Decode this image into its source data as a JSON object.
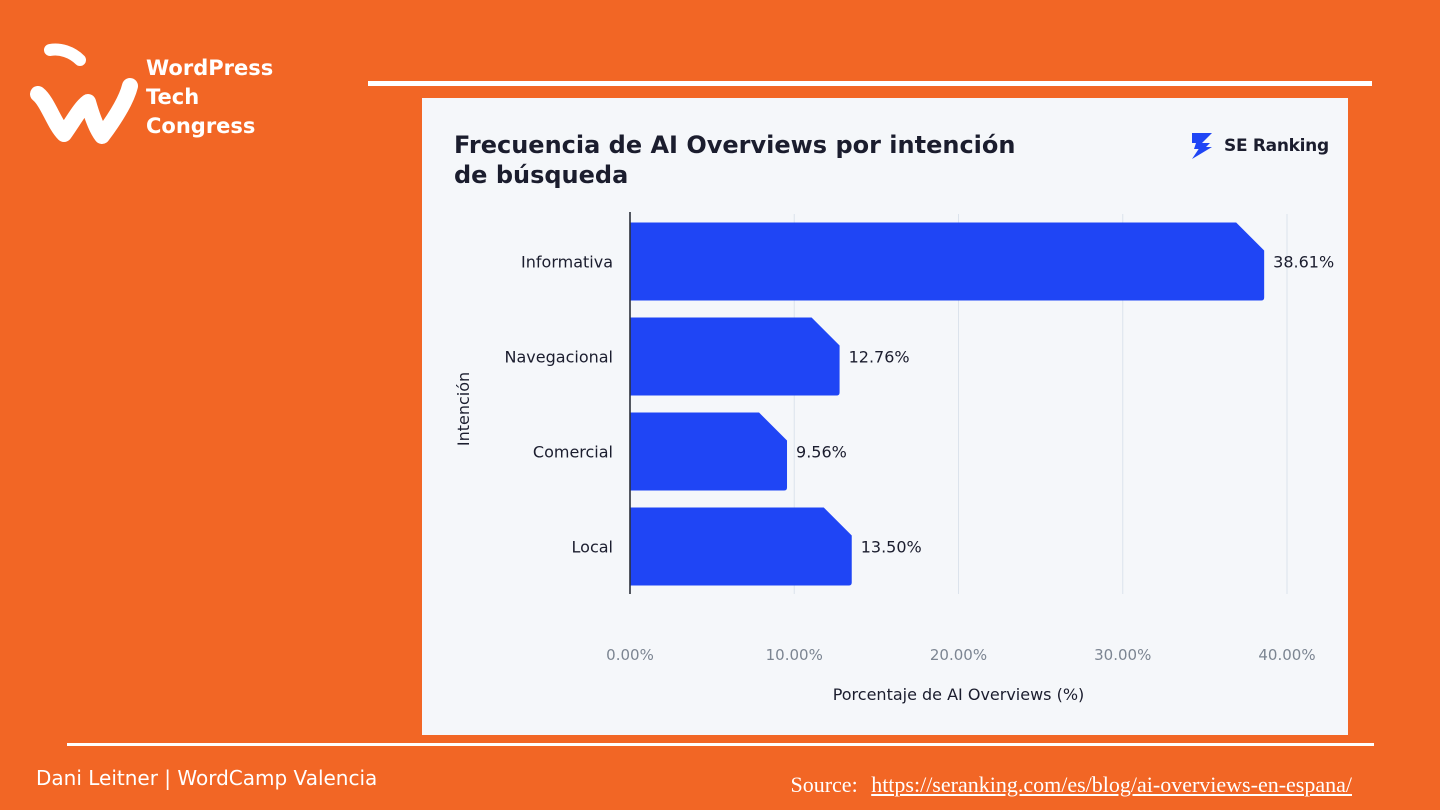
{
  "brand": {
    "line1": "WordPress",
    "line2": "Tech",
    "line3": "Congress"
  },
  "chart_brand": "SE Ranking",
  "chart_data": {
    "type": "bar",
    "orientation": "horizontal",
    "title": "Frecuencia de AI Overviews por intención de búsqueda",
    "title_lines": [
      "Frecuencia de AI Overviews por intención",
      "de búsqueda"
    ],
    "categories": [
      "Informativa",
      "Navegacional",
      "Comercial",
      "Local"
    ],
    "values": [
      38.61,
      12.76,
      9.56,
      13.5
    ],
    "value_labels": [
      "38.61%",
      "12.76%",
      "9.56%",
      "13.50%"
    ],
    "xlabel": "Porcentaje de AI Overviews (%)",
    "ylabel": "Intención",
    "xlim": [
      0,
      40
    ],
    "xticks": [
      0,
      10,
      20,
      30,
      40
    ],
    "xtick_labels": [
      "0.00%",
      "10.00%",
      "20.00%",
      "30.00%",
      "40.00%"
    ],
    "grid": true,
    "legend": "none"
  },
  "footer": {
    "credit": "Dani Leitner | WordCamp Valencia",
    "source_label": "Source:",
    "source_url": "https://seranking.com/es/blog/ai-overviews-en-espana/"
  },
  "colors": {
    "background": "#F26625",
    "bar": "#1F45F5",
    "card": "#F5F7FA",
    "text": "#1B1D2E",
    "tick": "#7C8592",
    "grid": "#DCE3EC"
  }
}
